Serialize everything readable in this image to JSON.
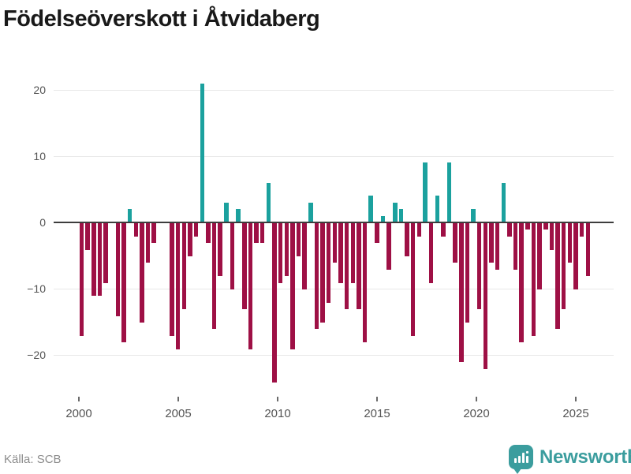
{
  "title": "Födelseöverskott i Åtvidaberg",
  "source": "Källa: SCB",
  "brand": {
    "name": "Newsworthy",
    "icon": "newsworthy-speech-bubble-bar-chart-icon"
  },
  "colors": {
    "positive_bar": "#1ba19e",
    "negative_bar": "#9e1045",
    "zero_axis": "#3d3d3d",
    "gridline": "#e8e8e8",
    "tick_label": "#555555",
    "title_text": "#191919",
    "source_text": "#8c8c8c",
    "brand_teal": "#3b9d9e"
  },
  "chart_data": {
    "type": "bar",
    "title": "Födelseöverskott i Åtvidaberg",
    "xlabel": "",
    "ylabel": "",
    "x_tick_labels": [
      "2000",
      "2005",
      "2010",
      "2015",
      "2020",
      "2025"
    ],
    "y_ticks": [
      {
        "value": 20,
        "label": "20"
      },
      {
        "value": 10,
        "label": "10"
      },
      {
        "value": 0,
        "label": "0"
      },
      {
        "value": -10,
        "label": "−10"
      },
      {
        "value": -20,
        "label": "−20"
      }
    ],
    "ylim": [
      -26,
      23
    ],
    "x_start_year": 2000,
    "x_end_year": 2025.6,
    "grid": true,
    "legend": false,
    "note": "one bar per sub-annual period, zeros render as no bar",
    "values": [
      -17,
      -4,
      -11,
      -11,
      -9,
      0,
      -14,
      -18,
      2,
      -2,
      -15,
      -6,
      -3,
      0,
      0,
      -17,
      -19,
      -13,
      -5,
      -2,
      21,
      -3,
      -16,
      -8,
      3,
      -10,
      2,
      -13,
      -19,
      -3,
      -3,
      6,
      -24,
      -9,
      -8,
      -19,
      -5,
      -10,
      3,
      -16,
      -15,
      -12,
      -6,
      -9,
      -13,
      -9,
      -13,
      -18,
      4,
      -3,
      1,
      -7,
      3,
      2,
      -5,
      -17,
      -2,
      9,
      -9,
      4,
      -2,
      9,
      -6,
      -21,
      -15,
      2,
      -13,
      -22,
      -6,
      -7,
      6,
      -2,
      -7,
      -18,
      -1,
      -17,
      -10,
      -1,
      -4,
      -16,
      -13,
      -6,
      -10,
      -2,
      -8
    ]
  }
}
